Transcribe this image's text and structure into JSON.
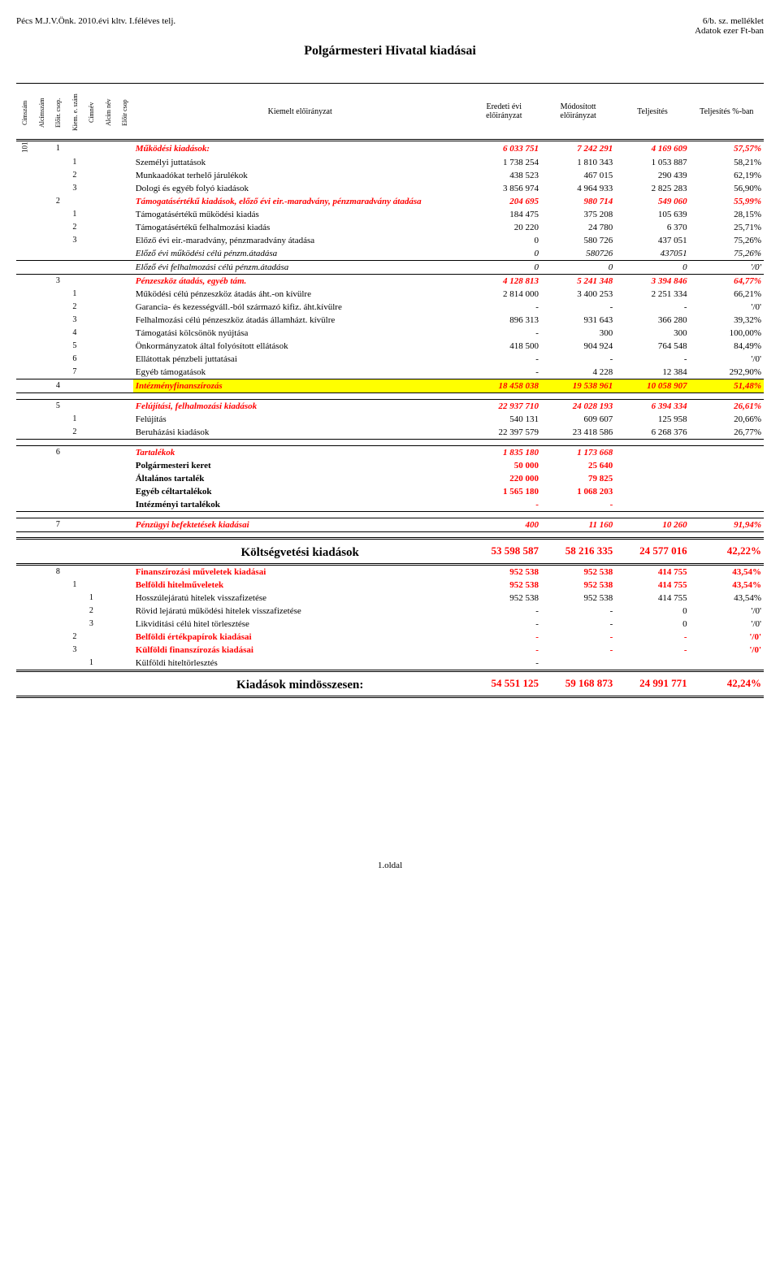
{
  "header": {
    "left_line": "Pécs M.J.V.Önk. 2010.évi kltv. I.féléves telj.",
    "right_line1": "6/b. sz. melléklet",
    "right_line2": "Adatok ezer Ft-ban"
  },
  "title": "Polgármesteri Hivatal kiadásai",
  "column_headers": {
    "c1": "Címszám",
    "c2": "Alcímszám",
    "c3": "Előir. csop.",
    "c4": "Kiem. e. szám",
    "c5": "Címnév",
    "c6": "Alcím név",
    "c7": "Előir csop",
    "main": "Kiemelt előirányzat",
    "n1": "Eredeti évi előirányzat",
    "n2": "Módosított előirányzat",
    "n3": "Teljesítés",
    "n4": "Teljesítés %-ban"
  },
  "section_kv": "Költségvetési kiadások",
  "kv_vals": {
    "v1": "53 598 587",
    "v2": "58 216 335",
    "v3": "24 577 016",
    "pct": "42,22%"
  },
  "grand_total": "Kiadások mindösszesen:",
  "grand_vals": {
    "v1": "54 551 125",
    "v2": "59 168 873",
    "v3": "24 991 771",
    "pct": "42,24%"
  },
  "footer": "1.oldal",
  "rows": [
    {
      "c1": "101",
      "c3": "1",
      "label": "Működési kiadások:",
      "cls": "red biitalic",
      "v1": "6 033 751",
      "v2": "7 242 291",
      "v3": "4 169 609",
      "pct": "57,57%",
      "topline": true
    },
    {
      "c4": "1",
      "label": "Személyi juttatások",
      "v1": "1 738 254",
      "v2": "1 810 343",
      "v3": "1 053 887",
      "pct": "58,21%"
    },
    {
      "c4": "2",
      "label": "Munkaadókat terhelő járulékok",
      "v1": "438 523",
      "v2": "467 015",
      "v3": "290 439",
      "pct": "62,19%"
    },
    {
      "c4": "3",
      "label": "Dologi és egyéb folyó kiadások",
      "v1": "3 856 974",
      "v2": "4 964 933",
      "v3": "2 825 283",
      "pct": "56,90%"
    },
    {
      "c3": "2",
      "label": "Támogatásértékű kiadások, előző évi eir.-maradvány, pénzmaradvány átadása",
      "cls": "red biitalic",
      "v1": "204 695",
      "v2": "980 714",
      "v3": "549 060",
      "pct": "55,99%"
    },
    {
      "c4": "1",
      "label": "Támogatásértékű működési kiadás",
      "v1": "184 475",
      "v2": "375 208",
      "v3": "105 639",
      "pct": "28,15%"
    },
    {
      "c4": "2",
      "label": "Támogatásértékű felhalmozási kiadás",
      "v1": "20 220",
      "v2": "24 780",
      "v3": "6 370",
      "pct": "25,71%"
    },
    {
      "c4": "3",
      "label": "Előző évi eir.-maradvány, pénzmaradvány átadása",
      "v1": "0",
      "v2": "580 726",
      "v3": "437 051",
      "pct": "75,26%"
    },
    {
      "label": "Előző évi működési célú pénzm.átadása",
      "cls": "italic",
      "v1": "0",
      "v2": "580726",
      "v3": "437051",
      "pct": "75,26%",
      "botline": true
    },
    {
      "label": "Előző évi felhalmozási célú pénzm.átadása",
      "cls": "italic",
      "v1": "0",
      "v2": "0",
      "v3": "0",
      "pct": "'/0'",
      "botline": true
    },
    {
      "c3": "3",
      "label": "Pénzeszköz átadás, egyéb tám.",
      "cls": "red biitalic",
      "v1": "4 128 813",
      "v2": "5 241 348",
      "v3": "3 394 846",
      "pct": "64,77%"
    },
    {
      "c4": "1",
      "label": "Működési célú pénzeszköz átadás áht.-on kívülre",
      "v1": "2 814 000",
      "v2": "3 400 253",
      "v3": "2 251 334",
      "pct": "66,21%"
    },
    {
      "c4": "2",
      "label": "Garancia- és kezességváll.-ból származó kifiz. áht.kívülre",
      "v1": "-",
      "v2": "-",
      "v3": "-",
      "pct": "'/0'"
    },
    {
      "c4": "3",
      "label": "Felhalmozási célú pénzeszköz átadás államházt. kívülre",
      "v1": "896 313",
      "v2": "931 643",
      "v3": "366 280",
      "pct": "39,32%"
    },
    {
      "c4": "4",
      "label": "Támogatási kölcsönök nyújtása",
      "v1": "-",
      "v2": "300",
      "v3": "300",
      "pct": "100,00%"
    },
    {
      "c4": "5",
      "label": "Önkormányzatok által folyósított ellátások",
      "v1": "418 500",
      "v2": "904 924",
      "v3": "764 548",
      "pct": "84,49%"
    },
    {
      "c4": "6",
      "label": "Ellátottak pénzbeli juttatásai",
      "v1": "-",
      "v2": "-",
      "v3": "-",
      "pct": "'/0'"
    },
    {
      "c4": "7",
      "label": "Egyéb támogatások",
      "v1": "-",
      "v2": "4 228",
      "v3": "12 384",
      "pct": "292,90%"
    },
    {
      "c3": "4",
      "label": "Intézményfinanszírozás",
      "cls": "red biitalic yellow",
      "v1": "18 458 038",
      "v2": "19 538 961",
      "v3": "10 058 907",
      "pct": "51,48%",
      "topline": true,
      "botline": true
    },
    {
      "spacer": true
    },
    {
      "c3": "5",
      "label": "Felújítási, felhalmozási kiadások",
      "cls": "red biitalic",
      "v1": "22 937 710",
      "v2": "24 028 193",
      "v3": "6 394 334",
      "pct": "26,61%",
      "topline": true
    },
    {
      "c4": "1",
      "label": "Felújítás",
      "v1": "540 131",
      "v2": "609 607",
      "v3": "125 958",
      "pct": "20,66%"
    },
    {
      "c4": "2",
      "label": "Beruházási kiadások",
      "v1": "22 397 579",
      "v2": "23 418 586",
      "v3": "6 268 376",
      "pct": "26,77%",
      "botline": true
    },
    {
      "spacer": true
    },
    {
      "c3": "6",
      "label": "Tartalékok",
      "cls": "red biitalic",
      "v1": "1 835 180",
      "v2": "1 173 668",
      "v3": "",
      "pct": "",
      "topline": true
    },
    {
      "label": "Polgármesteri keret",
      "cls": "bold",
      "v1": "50 000",
      "v2": "25 640",
      "v3": "",
      "pct": "",
      "vcls": "red"
    },
    {
      "label": "Általános tartalék",
      "cls": "bold",
      "v1": "220 000",
      "v2": "79 825",
      "v3": "",
      "pct": "",
      "vcls": "red"
    },
    {
      "label": "Egyéb céltartalékok",
      "cls": "bold",
      "v1": "1 565 180",
      "v2": "1 068 203",
      "v3": "",
      "pct": "",
      "vcls": "red"
    },
    {
      "label": "Intézményi tartalékok",
      "cls": "bold",
      "v1": "-",
      "v2": "-",
      "v3": "",
      "pct": "",
      "vcls": "red",
      "botline": true
    },
    {
      "spacer": true
    },
    {
      "c3": "7",
      "label": "Pénzügyi befektetések kiadásai",
      "cls": "red biitalic",
      "v1": "400",
      "v2": "11 160",
      "v3": "10 260",
      "pct": "91,94%",
      "topline": true,
      "botline": true
    }
  ],
  "rows2": [
    {
      "c3": "8",
      "label": "Finanszírozási műveletek kiadásai",
      "cls": "red bold",
      "v1": "952 538",
      "v2": "952 538",
      "v3": "414 755",
      "pct": "43,54%",
      "topline": true
    },
    {
      "c4": "1",
      "label": "Belföldi hitelműveletek",
      "cls": "red bold",
      "v1": "952 538",
      "v2": "952 538",
      "v3": "414 755",
      "pct": "43,54%"
    },
    {
      "c5": "1",
      "label": "Hosszúlejáratú hitelek visszafizetése",
      "v1": "952 538",
      "v2": "952 538",
      "v3": "414 755",
      "pct": "43,54%"
    },
    {
      "c5": "2",
      "label": "Rövid lejáratú működési hitelek visszafizetése",
      "v1": "-",
      "v2": "-",
      "v3": "0",
      "pct": "'/0'"
    },
    {
      "c5": "3",
      "label": "Likviditási célú hitel törlesztése",
      "v1": "-",
      "v2": "-",
      "v3": "0",
      "pct": "'/0'"
    },
    {
      "c4": "2",
      "label": "Belföldi értékpapírok kiadásai",
      "cls": "red bold",
      "v1": "-",
      "v2": "-",
      "v3": "-",
      "pct": "'/0'"
    },
    {
      "c4": "3",
      "label": "Külföldi finanszírozás kiadásai",
      "cls": "red bold",
      "v1": "-",
      "v2": "-",
      "v3": "-",
      "pct": "'/0'"
    },
    {
      "c5": "1",
      "label": "Külföldi hiteltörlesztés",
      "v1": "-",
      "v2": "",
      "v3": "",
      "pct": "",
      "botline": true
    }
  ]
}
